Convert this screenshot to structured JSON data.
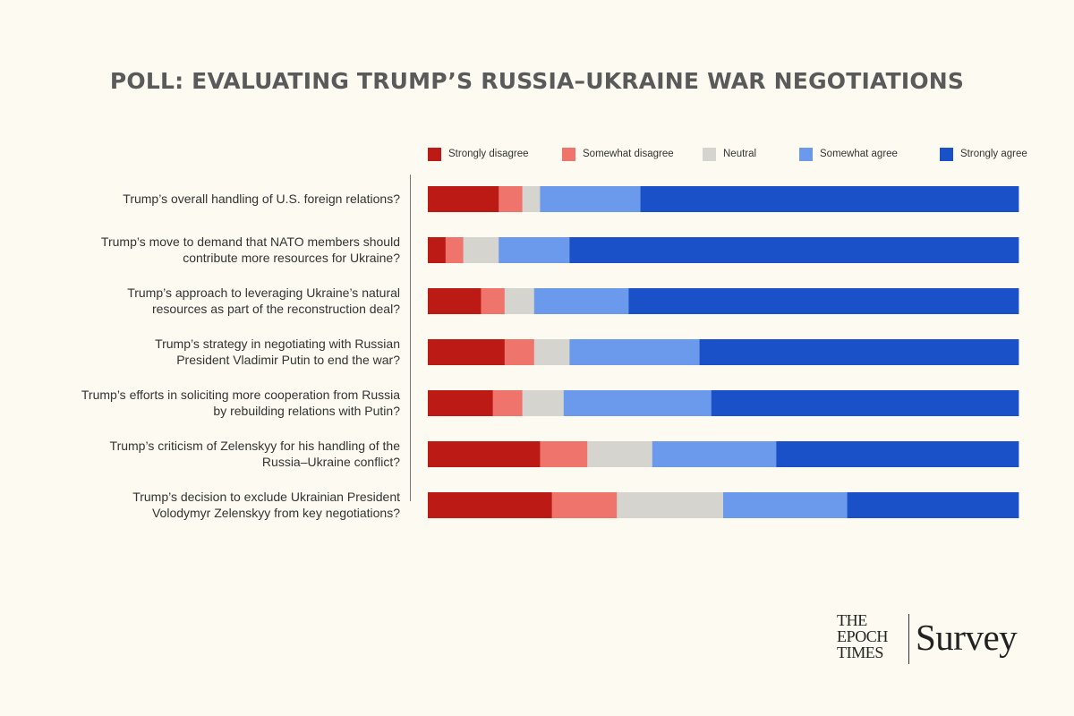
{
  "title": "POLL: EVALUATING TRUMP’S RUSSIA–UKRAINE WAR NEGOTIATIONS",
  "brand": {
    "name_lines": [
      "THE",
      "EPOCH",
      "TIMES"
    ],
    "product": "Survey"
  },
  "colors": {
    "background": "#fcfaf1",
    "strongly_disagree": "#bb1b14",
    "somewhat_disagree": "#ef746b",
    "neutral": "#d6d4cf",
    "somewhat_agree": "#6b9aec",
    "strongly_agree": "#1a51c9"
  },
  "chart_data": {
    "type": "bar",
    "orientation": "horizontal",
    "stacked": true,
    "normalized": true,
    "legend_position": "top",
    "grid": false,
    "categories": [
      "Trump’s overall handling of U.S. foreign relations?",
      "Trump’s move to demand that NATO members should contribute more resources for Ukraine?",
      "Trump’s approach to leveraging Ukraine’s natural resources as part of the reconstruction deal?",
      "Trump’s strategy in negotiating with Russian President Vladimir Putin to end the war?",
      "Trump’s efforts in soliciting more cooperation from Russia by rebuilding relations with Putin?",
      "Trump’s criticism of Zelenskyy for his handling of the Russia–Ukraine conflict?",
      "Trump’s decision to exclude Ukrainian President Volodymyr Zelenskyy from key negotiations?"
    ],
    "category_lines": [
      [
        "Trump’s overall handling of U.S. foreign relations?"
      ],
      [
        "Trump’s move to demand that NATO members should",
        "contribute more resources for Ukraine?"
      ],
      [
        "Trump’s approach to leveraging Ukraine’s natural",
        "resources as part of the reconstruction deal?"
      ],
      [
        "Trump’s strategy in negotiating with Russian",
        "President Vladimir Putin to end the war?"
      ],
      [
        "Trump’s efforts in soliciting more cooperation from Russia",
        "by rebuilding relations with Putin?"
      ],
      [
        "Trump’s criticism of Zelenskyy for his handling of the",
        "Russia–Ukraine conflict?"
      ],
      [
        "Trump’s decision to exclude Ukrainian President",
        "Volodymyr Zelenskyy from key negotiations?"
      ]
    ],
    "series": [
      {
        "name": "Strongly disagree",
        "color": "#bb1b14",
        "values": [
          12,
          3,
          9,
          13,
          11,
          19,
          21
        ]
      },
      {
        "name": "Somewhat disagree",
        "color": "#ef746b",
        "values": [
          4,
          3,
          4,
          5,
          5,
          8,
          11
        ]
      },
      {
        "name": "Neutral",
        "color": "#d6d4cf",
        "values": [
          3,
          6,
          5,
          6,
          7,
          11,
          18
        ]
      },
      {
        "name": "Somewhat agree",
        "color": "#6b9aec",
        "values": [
          17,
          12,
          16,
          22,
          25,
          21,
          21
        ]
      },
      {
        "name": "Strongly agree",
        "color": "#1a51c9",
        "values": [
          64,
          76,
          66,
          54,
          52,
          41,
          29
        ]
      }
    ],
    "xlim": [
      0,
      100
    ]
  }
}
